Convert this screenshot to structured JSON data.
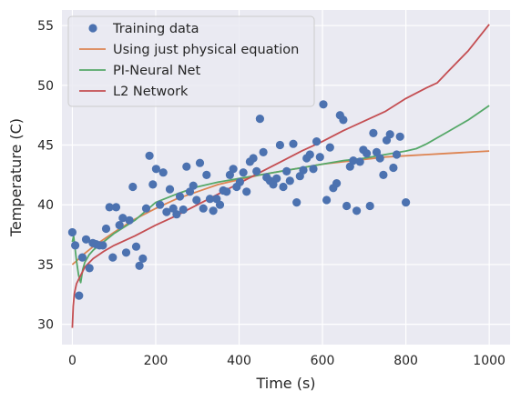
{
  "chart_data": {
    "type": "line",
    "xlabel": "Time (s)",
    "ylabel": "Temperature (C)",
    "xlim": [
      -25,
      1050
    ],
    "ylim": [
      28.3,
      56.3
    ],
    "xticks": [
      0,
      200,
      400,
      600,
      800,
      1000
    ],
    "yticks": [
      30,
      35,
      40,
      45,
      50,
      55
    ],
    "grid": true,
    "legend_position": "top-left",
    "background": "#eaeaf2",
    "scatter": {
      "name": "Training data",
      "color": "#4c72b0",
      "points": [
        [
          0,
          37.7
        ],
        [
          7,
          36.6
        ],
        [
          16,
          32.4
        ],
        [
          24,
          35.6
        ],
        [
          33,
          37.1
        ],
        [
          41,
          34.7
        ],
        [
          49,
          36.8
        ],
        [
          57,
          36.7
        ],
        [
          65,
          36.6
        ],
        [
          73,
          36.6
        ],
        [
          81,
          38
        ],
        [
          89,
          39.8
        ],
        [
          97,
          35.6
        ],
        [
          105,
          39.8
        ],
        [
          113,
          38.3
        ],
        [
          121,
          38.9
        ],
        [
          129,
          36
        ],
        [
          137,
          38.7
        ],
        [
          145,
          41.5
        ],
        [
          153,
          36.5
        ],
        [
          161,
          34.9
        ],
        [
          169,
          35.5
        ],
        [
          177,
          39.7
        ],
        [
          185,
          44.1
        ],
        [
          193,
          41.7
        ],
        [
          201,
          43
        ],
        [
          210,
          40
        ],
        [
          218,
          42.7
        ],
        [
          226,
          39.4
        ],
        [
          234,
          41.3
        ],
        [
          242,
          39.7
        ],
        [
          250,
          39.2
        ],
        [
          258,
          40.7
        ],
        [
          266,
          39.6
        ],
        [
          274,
          43.2
        ],
        [
          282,
          41.1
        ],
        [
          290,
          41.6
        ],
        [
          298,
          40.4
        ],
        [
          306,
          43.5
        ],
        [
          314,
          39.7
        ],
        [
          322,
          42.5
        ],
        [
          330,
          40.5
        ],
        [
          338,
          39.5
        ],
        [
          346,
          40.5
        ],
        [
          354,
          40
        ],
        [
          362,
          41.2
        ],
        [
          370,
          41.1
        ],
        [
          378,
          42.5
        ],
        [
          386,
          43
        ],
        [
          394,
          41.5
        ],
        [
          402,
          41.9
        ],
        [
          410,
          42.7
        ],
        [
          418,
          41.1
        ],
        [
          426,
          43.6
        ],
        [
          434,
          43.9
        ],
        [
          442,
          42.8
        ],
        [
          450,
          47.2
        ],
        [
          458,
          44.4
        ],
        [
          466,
          42.3
        ],
        [
          474,
          42
        ],
        [
          482,
          41.7
        ],
        [
          490,
          42.2
        ],
        [
          498,
          45
        ],
        [
          506,
          41.5
        ],
        [
          514,
          42.8
        ],
        [
          522,
          42
        ],
        [
          530,
          45.1
        ],
        [
          538,
          40.2
        ],
        [
          546,
          42.4
        ],
        [
          554,
          42.9
        ],
        [
          562,
          43.9
        ],
        [
          570,
          44.2
        ],
        [
          578,
          43
        ],
        [
          586,
          45.3
        ],
        [
          594,
          44
        ],
        [
          602,
          48.4
        ],
        [
          610,
          40.4
        ],
        [
          618,
          44.8
        ],
        [
          626,
          41.4
        ],
        [
          634,
          41.8
        ],
        [
          642,
          47.5
        ],
        [
          650,
          47.1
        ],
        [
          658,
          39.9
        ],
        [
          666,
          43.2
        ],
        [
          674,
          43.7
        ],
        [
          682,
          39.5
        ],
        [
          690,
          43.6
        ],
        [
          698,
          44.6
        ],
        [
          706,
          44.3
        ],
        [
          714,
          39.9
        ],
        [
          722,
          46
        ],
        [
          730,
          44.4
        ],
        [
          738,
          43.9
        ],
        [
          746,
          42.5
        ],
        [
          754,
          45.4
        ],
        [
          762,
          45.9
        ],
        [
          770,
          43.1
        ],
        [
          778,
          44.2
        ],
        [
          786,
          45.7
        ],
        [
          800,
          40.2
        ]
      ]
    },
    "series": [
      {
        "name": "Using just physical equation",
        "color": "#dd8452",
        "x": [
          0,
          10,
          25,
          50,
          75,
          100,
          150,
          200,
          250,
          300,
          350,
          400,
          450,
          500,
          550,
          600,
          650,
          700,
          750,
          800,
          850,
          900,
          950,
          1000
        ],
        "y": [
          35,
          35.3,
          35.8,
          36.5,
          37.1,
          37.7,
          38.8,
          39.7,
          40.5,
          41.1,
          41.7,
          42.1,
          42.5,
          42.8,
          43.1,
          43.4,
          43.6,
          43.8,
          44,
          44.1,
          44.2,
          44.3,
          44.4,
          44.5
        ]
      },
      {
        "name": "PI-Neural Net",
        "color": "#55a868",
        "x": [
          0,
          3,
          6,
          10,
          15,
          20,
          25,
          30,
          35,
          40,
          50,
          60,
          75,
          100,
          150,
          200,
          250,
          300,
          350,
          400,
          450,
          500,
          550,
          600,
          650,
          700,
          750,
          800,
          825,
          850,
          875,
          900,
          950,
          1000
        ],
        "y": [
          36.9,
          37.4,
          36.5,
          35.3,
          34.1,
          33.5,
          34.6,
          35.2,
          35.5,
          35.8,
          36.2,
          36.5,
          36.9,
          37.6,
          38.7,
          40.2,
          40.9,
          41.5,
          41.9,
          42.2,
          42.5,
          42.8,
          43.1,
          43.4,
          43.7,
          43.9,
          44.2,
          44.5,
          44.7,
          45.1,
          45.6,
          46.1,
          47.1,
          48.3
        ]
      },
      {
        "name": "L2 Network",
        "color": "#c44e52",
        "x": [
          0,
          2,
          5,
          10,
          20,
          30,
          50,
          75,
          100,
          150,
          200,
          250,
          300,
          350,
          400,
          450,
          500,
          550,
          600,
          650,
          700,
          750,
          800,
          850,
          875,
          900,
          950,
          1000
        ],
        "y": [
          29.7,
          31.5,
          32.6,
          33.4,
          34.1,
          34.8,
          35.5,
          36.1,
          36.6,
          37.4,
          38.3,
          39.1,
          40,
          40.9,
          41.8,
          42.7,
          43.6,
          44.5,
          45.3,
          46.2,
          47,
          47.8,
          48.9,
          49.8,
          50.2,
          51.1,
          52.9,
          55.1
        ]
      }
    ]
  }
}
